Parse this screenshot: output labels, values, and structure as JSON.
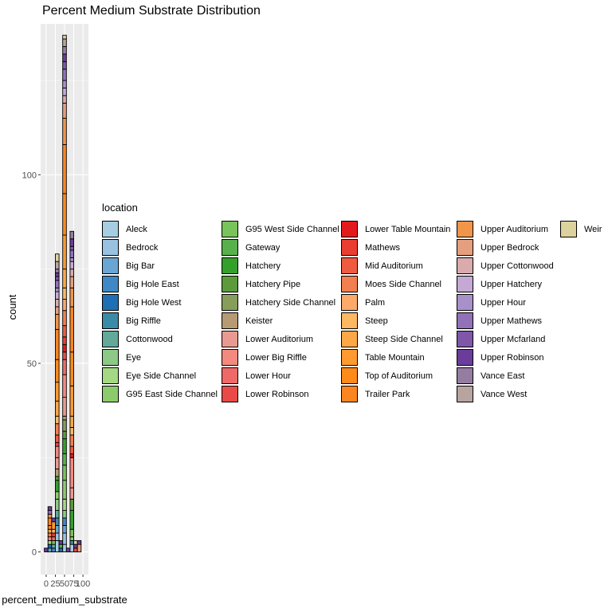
{
  "chart_data": {
    "type": "bar",
    "title": "Percent Medium Substrate Distribution",
    "xlabel": "percent_medium_substrate",
    "ylabel": "count",
    "x_tick_labels": [
      "0",
      "25",
      "50",
      "75",
      "100"
    ],
    "x_ticks": [
      0,
      25,
      50,
      75,
      100
    ],
    "y_tick_labels": [
      "0",
      "50",
      "100"
    ],
    "y_ticks": [
      0,
      50,
      100
    ],
    "xlim": [
      -15,
      115
    ],
    "ylim": [
      -6,
      140
    ],
    "stacked": true,
    "grid": true,
    "legend_position": "right",
    "legend_title": "location",
    "bin_centers": [
      0,
      10,
      20,
      30,
      40,
      50,
      60,
      70,
      80,
      90,
      100
    ],
    "series": [
      {
        "name": "Aleck",
        "color": "#a6cee3",
        "values": [
          0,
          0,
          0,
          3,
          0,
          2,
          0,
          2,
          0,
          0,
          0
        ]
      },
      {
        "name": "Bedrock",
        "color": "#99c2e1",
        "values": [
          0,
          0,
          0,
          2,
          0,
          3,
          0,
          0,
          0,
          0,
          0
        ]
      },
      {
        "name": "Big Bar",
        "color": "#6aa6d4",
        "values": [
          0,
          1,
          0,
          2,
          0,
          2,
          0,
          0,
          0,
          0,
          0
        ]
      },
      {
        "name": "Big Hole East",
        "color": "#3f88c5",
        "values": [
          0,
          0,
          1,
          0,
          0,
          2,
          0,
          0,
          0,
          0,
          0
        ]
      },
      {
        "name": "Big Hole West",
        "color": "#1f6fb4",
        "values": [
          0,
          1,
          0,
          0,
          1,
          0,
          0,
          0,
          0,
          0,
          0
        ]
      },
      {
        "name": "Big Riffle",
        "color": "#3a8ba8",
        "values": [
          0,
          0,
          0,
          2,
          0,
          0,
          0,
          1,
          0,
          0,
          0
        ]
      },
      {
        "name": "Cottonwood",
        "color": "#62a99a",
        "values": [
          0,
          0,
          1,
          2,
          0,
          0,
          0,
          0,
          0,
          0,
          0
        ]
      },
      {
        "name": "Eye",
        "color": "#8dc887",
        "values": [
          0,
          0,
          0,
          3,
          0,
          2,
          0,
          0,
          0,
          0,
          0
        ]
      },
      {
        "name": "Eye Side Channel",
        "color": "#a5d883",
        "values": [
          0,
          1,
          0,
          0,
          0,
          3,
          0,
          0,
          0,
          0,
          0
        ]
      },
      {
        "name": "G95 East Side Channel",
        "color": "#8ccb6c",
        "values": [
          0,
          0,
          0,
          2,
          0,
          5,
          0,
          1,
          0,
          0,
          0
        ]
      },
      {
        "name": "G95 West Side Channel",
        "color": "#79c35b",
        "values": [
          0,
          0,
          1,
          0,
          0,
          4,
          0,
          2,
          0,
          0,
          0
        ]
      },
      {
        "name": "Gateway",
        "color": "#58b04d",
        "values": [
          0,
          0,
          0,
          0,
          1,
          3,
          0,
          0,
          0,
          0,
          0
        ]
      },
      {
        "name": "Hatchery",
        "color": "#33a02c",
        "values": [
          0,
          0,
          0,
          3,
          0,
          4,
          0,
          5,
          0,
          0,
          0
        ]
      },
      {
        "name": "Hatchery Pipe",
        "color": "#5b9b3c",
        "values": [
          0,
          0,
          0,
          1,
          0,
          2,
          0,
          3,
          0,
          0,
          0
        ]
      },
      {
        "name": "Hatchery Side Channel",
        "color": "#869e5a",
        "values": [
          0,
          0,
          0,
          0,
          0,
          3,
          0,
          0,
          0,
          0,
          0
        ]
      },
      {
        "name": "Keister",
        "color": "#b59a74",
        "values": [
          0,
          0,
          0,
          2,
          0,
          1,
          0,
          0,
          0,
          0,
          0
        ]
      },
      {
        "name": "Lower Auditorium",
        "color": "#e99a90",
        "values": [
          0,
          0,
          0,
          3,
          0,
          5,
          0,
          3,
          0,
          0,
          0
        ]
      },
      {
        "name": "Lower Big Riffle",
        "color": "#f3897f",
        "values": [
          0,
          1,
          0,
          3,
          0,
          6,
          0,
          8,
          0,
          0,
          0
        ]
      },
      {
        "name": "Lower Hour",
        "color": "#ef6969",
        "values": [
          0,
          0,
          1,
          0,
          0,
          4,
          0,
          0,
          0,
          0,
          0
        ]
      },
      {
        "name": "Lower Robinson",
        "color": "#e94a47",
        "values": [
          0,
          0,
          0,
          1,
          0,
          2,
          0,
          0,
          1,
          0,
          0
        ]
      },
      {
        "name": "Lower Table Mountain",
        "color": "#e31a1c",
        "values": [
          0,
          0,
          0,
          0,
          0,
          2,
          0,
          1,
          0,
          0,
          0
        ]
      },
      {
        "name": "Mathews",
        "color": "#ea3e32",
        "values": [
          0,
          0,
          1,
          0,
          0,
          2,
          0,
          0,
          0,
          0,
          0
        ]
      },
      {
        "name": "Mid Auditorium",
        "color": "#ef5b41",
        "values": [
          0,
          0,
          0,
          2,
          0,
          3,
          0,
          2,
          0,
          0,
          0
        ]
      },
      {
        "name": "Moes Side Channel",
        "color": "#f27f50",
        "values": [
          0,
          1,
          0,
          3,
          0,
          4,
          0,
          3,
          0,
          0,
          0
        ]
      },
      {
        "name": "Palm",
        "color": "#fca96a",
        "values": [
          0,
          0,
          0,
          0,
          0,
          3,
          0,
          0,
          0,
          0,
          0
        ]
      },
      {
        "name": "Steep",
        "color": "#fdb862",
        "values": [
          0,
          0,
          1,
          2,
          0,
          3,
          0,
          2,
          0,
          0,
          0
        ]
      },
      {
        "name": "Steep Side Channel",
        "color": "#fea746",
        "values": [
          0,
          1,
          0,
          4,
          0,
          5,
          0,
          3,
          0,
          0,
          0
        ]
      },
      {
        "name": "Table Mountain",
        "color": "#fe9a2f",
        "values": [
          0,
          0,
          2,
          5,
          0,
          9,
          0,
          8,
          0,
          0,
          0
        ]
      },
      {
        "name": "Top of Auditorium",
        "color": "#fe8a1a",
        "values": [
          0,
          1,
          0,
          6,
          0,
          11,
          0,
          9,
          0,
          0,
          0
        ]
      },
      {
        "name": "Trailer Park",
        "color": "#fb8520",
        "values": [
          0,
          2,
          0,
          8,
          0,
          13,
          0,
          12,
          0,
          0,
          0
        ]
      },
      {
        "name": "Upper Auditorium",
        "color": "#f0954a",
        "values": [
          0,
          1,
          0,
          4,
          0,
          7,
          0,
          5,
          0,
          0,
          0
        ]
      },
      {
        "name": "Upper Bedrock",
        "color": "#e59f7e",
        "values": [
          0,
          0,
          0,
          2,
          0,
          4,
          0,
          3,
          0,
          2,
          0
        ]
      },
      {
        "name": "Upper Cottonwood",
        "color": "#d9abad",
        "values": [
          0,
          0,
          0,
          2,
          0,
          2,
          0,
          2,
          0,
          0,
          0
        ]
      },
      {
        "name": "Upper Hatchery",
        "color": "#c5a9d4",
        "values": [
          0,
          0,
          0,
          2,
          0,
          2,
          0,
          2,
          0,
          0,
          0
        ]
      },
      {
        "name": "Upper Hour",
        "color": "#a890c9",
        "values": [
          0,
          0,
          0,
          1,
          0,
          2,
          0,
          1,
          0,
          0,
          0
        ]
      },
      {
        "name": "Upper Mathews",
        "color": "#9271b9",
        "values": [
          0,
          1,
          0,
          2,
          0,
          3,
          0,
          2,
          0,
          0,
          0
        ]
      },
      {
        "name": "Upper Mcfarland",
        "color": "#7f56a8",
        "values": [
          0,
          0,
          0,
          1,
          0,
          2,
          0,
          1,
          0,
          0,
          0
        ]
      },
      {
        "name": "Upper Robinson",
        "color": "#6a3d9a",
        "values": [
          1,
          1,
          1,
          1,
          1,
          2,
          1,
          2,
          1,
          1,
          0
        ]
      },
      {
        "name": "Vance East",
        "color": "#957da1",
        "values": [
          0,
          0,
          0,
          1,
          0,
          2,
          0,
          2,
          0,
          0,
          0
        ]
      },
      {
        "name": "Vance West",
        "color": "#b8a49f",
        "values": [
          0,
          0,
          0,
          2,
          0,
          2,
          0,
          0,
          0,
          0,
          0
        ]
      },
      {
        "name": "Weir",
        "color": "#dcd39c",
        "values": [
          0,
          0,
          0,
          2,
          0,
          1,
          0,
          0,
          1,
          0,
          0
        ]
      }
    ]
  }
}
